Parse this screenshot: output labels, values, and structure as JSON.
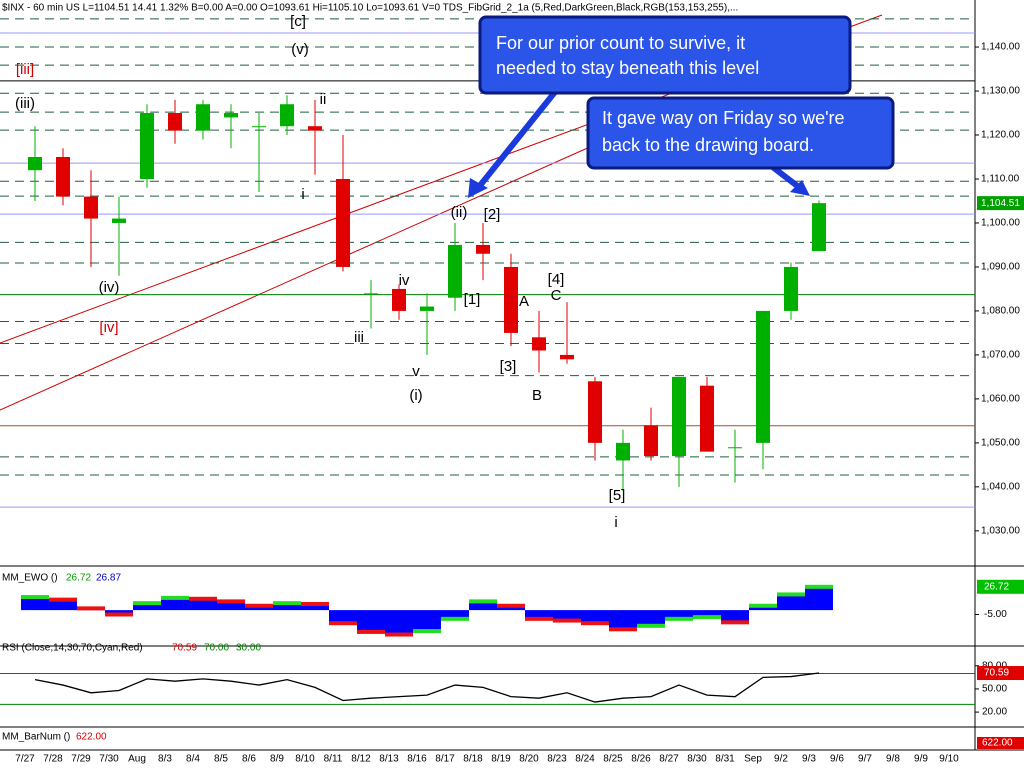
{
  "header": "$INX - 60 min  US  L=1104.51  14.41  1.32%  B=0.00  A=0.00  O=1093.61  Hi=1105.10  Lo=1093.61  V=0  TDS_FibGrid_2_1a (5,Red,DarkGreen,Black,RGB(153,153,255),...",
  "chart_data": [
    {
      "type": "candlestick",
      "categories": [
        "7/27",
        "7/28",
        "7/29",
        "7/30",
        "Aug",
        "8/3",
        "8/4",
        "8/5",
        "8/6",
        "8/9",
        "8/10",
        "8/11",
        "8/12",
        "8/13",
        "8/16",
        "8/17",
        "8/18",
        "8/19",
        "8/20",
        "8/23",
        "8/24",
        "8/25",
        "8/26",
        "8/27",
        "8/30",
        "8/31",
        "Sep",
        "9/2",
        "9/3",
        "9/6",
        "9/7",
        "9/8",
        "9/9",
        "9/10"
      ],
      "open": [
        1112,
        1115,
        1106,
        1100,
        1110,
        1125,
        1121,
        1124,
        1122,
        1122,
        1122,
        1110,
        1084,
        1085,
        1080,
        1083,
        1095,
        1090,
        1074,
        1070,
        1064,
        1046,
        1054,
        1047,
        1063,
        1049,
        1050,
        1080,
        1093.61,
        null,
        null,
        null,
        null,
        null
      ],
      "high": [
        1122,
        1117,
        1112,
        1106,
        1127,
        1128,
        1128,
        1127,
        1125,
        1129,
        1128,
        1120,
        1087,
        1086,
        1084,
        1100,
        1100,
        1093,
        1080,
        1082,
        1065,
        1053,
        1058,
        1065,
        1065,
        1053,
        1080,
        1091,
        1105.1,
        null,
        null,
        null,
        null,
        null
      ],
      "low": [
        1105,
        1104,
        1090,
        1088,
        1108,
        1118,
        1119,
        1117,
        1107,
        1120,
        1111,
        1089,
        1076,
        1078,
        1070,
        1080,
        1087,
        1072,
        1066,
        1068,
        1046,
        1039,
        1046,
        1040,
        1049,
        1041,
        1044,
        1078,
        1093.61,
        null,
        null,
        null,
        null,
        null
      ],
      "close": [
        1115,
        1106,
        1101,
        1101,
        1125,
        1121,
        1127,
        1125,
        1122,
        1127,
        1121,
        1090,
        1084,
        1080,
        1081,
        1095,
        1093,
        1075,
        1071,
        1069,
        1050,
        1050,
        1047,
        1065,
        1048,
        1049,
        1080,
        1090,
        1104.51,
        null,
        null,
        null,
        null,
        null
      ],
      "up_color": "#00b000",
      "down_color": "#e00000",
      "ylim": [
        1022,
        1150.7
      ],
      "yticks": [
        {
          "value": 1140,
          "label": "1,140.00"
        },
        {
          "value": 1130,
          "label": "1,130.00"
        },
        {
          "value": 1120,
          "label": "1,120.00"
        },
        {
          "value": 1110,
          "label": "1,110.00"
        },
        {
          "value": 1100,
          "label": "1,100.00"
        },
        {
          "value": 1090,
          "label": "1,090.00"
        },
        {
          "value": 1080,
          "label": "1,080.00"
        },
        {
          "value": 1070,
          "label": "1,070.00"
        },
        {
          "value": 1060,
          "label": "1,060.00"
        },
        {
          "value": 1050,
          "label": "1,050.00"
        },
        {
          "value": 1040,
          "label": "1,040.00"
        },
        {
          "value": 1030,
          "label": "1,030.00"
        }
      ],
      "last_price": {
        "value": 1104.51,
        "label": "1,104.51"
      },
      "levels_dashed": [
        1146.4,
        1140,
        1135.9,
        1129.5,
        1125.2,
        1121.1,
        1109.5,
        1106.1,
        1095.6,
        1090.9,
        1077.6,
        1072.6,
        1065.3,
        1046.8,
        1042.7
      ],
      "levels_solid": [
        {
          "value": 1143.2,
          "color": "#9999ff"
        },
        {
          "value": 1132.3,
          "color": "#000000"
        },
        {
          "value": 1113.6,
          "color": "#9999ff"
        },
        {
          "value": 1102,
          "color": "#9999ff"
        },
        {
          "value": 1083.7,
          "color": "#008000"
        },
        {
          "value": 1053.9,
          "color": "#a0522d"
        },
        {
          "value": 1035.4,
          "color": "#9999ff"
        }
      ],
      "annotations": [
        {
          "text": "[c]",
          "color": "#000"
        },
        {
          "text": "(v)",
          "color": "#000"
        },
        {
          "text": "[iii]",
          "color": "#d00000"
        },
        {
          "text": "(iii)",
          "color": "#000"
        },
        {
          "text": "ii",
          "color": "#000"
        },
        {
          "text": "i",
          "color": "#000"
        },
        {
          "text": "(iv)",
          "color": "#000"
        },
        {
          "text": "[iv]",
          "color": "#d00000"
        },
        {
          "text": "iii",
          "color": "#000"
        },
        {
          "text": "iv",
          "color": "#000"
        },
        {
          "text": "v",
          "color": "#000"
        },
        {
          "text": "(i)",
          "color": "#000"
        },
        {
          "text": "(ii)",
          "color": "#000"
        },
        {
          "text": "[2]",
          "color": "#000"
        },
        {
          "text": "[1]",
          "color": "#000"
        },
        {
          "text": "A",
          "color": "#000"
        },
        {
          "text": "[4]",
          "color": "#000"
        },
        {
          "text": "C",
          "color": "#000"
        },
        {
          "text": "[3]",
          "color": "#000"
        },
        {
          "text": "B",
          "color": "#000"
        },
        {
          "text": "[5]",
          "color": "#000"
        },
        {
          "text": "i",
          "color": "#000"
        }
      ],
      "callouts": [
        [
          "For our prior count to survive, it",
          "needed to stay beneath this level"
        ],
        [
          "It gave way on Friday so we're",
          "back to the drawing board."
        ]
      ]
    },
    {
      "type": "bar",
      "title": "MM_EWO ()",
      "legend_values": [
        26.72,
        26.87
      ],
      "color": "#0000ff",
      "values": [
        15,
        12,
        2,
        -5,
        8,
        14,
        13,
        10,
        5,
        8,
        7,
        -15,
        -25,
        -28,
        -24,
        -10,
        10,
        5,
        -10,
        -12,
        -15,
        -22,
        -18,
        -10,
        -8,
        -14,
        5,
        18,
        26.72,
        null,
        null,
        null,
        null,
        null
      ],
      "ylim": [
        -40,
        46
      ],
      "yticks": [
        {
          "value": -5,
          "label": "-5.00"
        }
      ]
    },
    {
      "type": "line",
      "title": "RSI (Close,14,30,70,Cyan,Red)",
      "legend_values": [
        70.59,
        {
          "value": 70,
          "label": "70.00"
        },
        {
          "value": 30,
          "label": "30.00"
        }
      ],
      "color": "#000000",
      "level_color": "#008000",
      "values": [
        62,
        55,
        45,
        48,
        63,
        60,
        63,
        60,
        55,
        62,
        52,
        35,
        38,
        40,
        42,
        55,
        52,
        40,
        38,
        45,
        33,
        38,
        40,
        55,
        42,
        40,
        65,
        66,
        70.59,
        null,
        null,
        null,
        null,
        null
      ],
      "ylim": [
        2,
        103
      ],
      "yticks": [
        {
          "value": 80,
          "label": "80.00"
        },
        {
          "value": 50,
          "label": "50.00"
        },
        {
          "value": 20,
          "label": "20.00"
        }
      ]
    }
  ],
  "barnum": {
    "title": "MM_BarNum ()",
    "value": {
      "value": 622,
      "label": "622.00"
    }
  }
}
